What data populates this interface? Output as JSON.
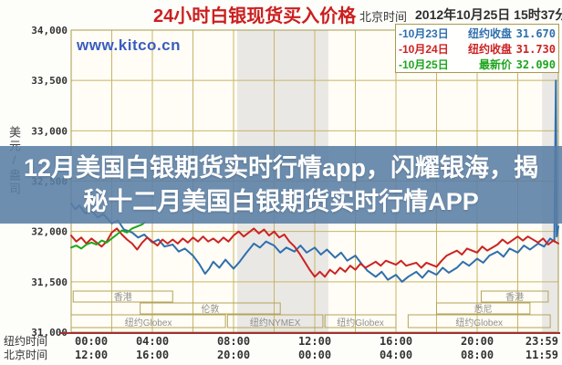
{
  "header": {
    "title": "24小时白银现货买入价格",
    "timezone_label": "北京时间",
    "datetime": "2012年10月25日 15时37分"
  },
  "watermark": "www.kitco.cn",
  "legend": [
    {
      "marker": "-",
      "date": "10月23日",
      "label": "纽约收盘",
      "value": "31.670",
      "color": "#2f6fad"
    },
    {
      "marker": "-",
      "date": "10月24日",
      "label": "纽约收盘",
      "value": "31.730",
      "color": "#cc2222"
    },
    {
      "marker": "-",
      "date": "10月25日",
      "label": "最新价",
      "value": "32.090",
      "color": "#1ea51e"
    }
  ],
  "overlay_banner": {
    "line1": "12月美国白银期货实时行情app，闪耀银海，揭",
    "line2": "秘十二月美国白银期货实时行情APP",
    "bg_color": "rgba(90,126,165,0.88)"
  },
  "y_axis": {
    "unit": "美元/盎司",
    "labels": [
      "34,000",
      "33,500",
      "33,000",
      "32,500",
      "32,000",
      "31,500",
      "31,000"
    ]
  },
  "x_axis": {
    "tick_hours": [
      0,
      4,
      8,
      12,
      16,
      20,
      23.98
    ],
    "rows": [
      {
        "label": "纽约时间",
        "ticks": [
          "00:00",
          "04:00",
          "08:00",
          "12:00",
          "16:00",
          "20:00",
          "23:59"
        ]
      },
      {
        "label": "北京时间",
        "ticks": [
          "12:00",
          "16:00",
          "20:00",
          "00:00",
          "04:00",
          "08:00",
          "11:59"
        ]
      }
    ]
  },
  "sessions": [
    {
      "row": 0,
      "label": "香港",
      "start_h": 0.1,
      "end_h": 5.0
    },
    {
      "row": 0,
      "label": "香港",
      "start_h": 20.2,
      "end_h": 23.5
    },
    {
      "row": 1,
      "label": "伦敦",
      "start_h": 3.4,
      "end_h": 10.3
    },
    {
      "row": 1,
      "label": "悉尼",
      "start_h": 18.0,
      "end_h": 22.6
    },
    {
      "row": 2,
      "label": "纽约Globex",
      "start_h": 0.0,
      "end_h": 7.6
    },
    {
      "row": 2,
      "label": "纽约NYMEX",
      "start_h": 7.7,
      "end_h": 12.4
    },
    {
      "row": 2,
      "label": "纽约Globex",
      "start_h": 12.5,
      "end_h": 16.0
    },
    {
      "row": 2,
      "label": "纽约Globex",
      "start_h": 16.6,
      "end_h": 23.6
    }
  ],
  "chart_data": {
    "type": "line",
    "title": "24小时白银现货买入价格",
    "ylabel": "美元/盎司",
    "ylim": [
      31.0,
      34.0
    ],
    "x_unit": "纽约时间 (hours)",
    "xlim": [
      0,
      24
    ],
    "grid": true,
    "legend_position": "top-right",
    "shaded_bands_hours": [
      [
        8.18,
        12.67
      ],
      [
        23.2,
        24
      ]
    ],
    "series": [
      {
        "name": "10月23日",
        "close_label": "纽约收盘",
        "close": 31.67,
        "color": "#2f6fad",
        "points": [
          [
            0,
            32.28
          ],
          [
            0.2,
            32.22
          ],
          [
            0.4,
            32.26
          ],
          [
            0.7,
            32.18
          ],
          [
            1,
            32.21
          ],
          [
            1.3,
            32.14
          ],
          [
            1.6,
            32.17
          ],
          [
            2,
            32.08
          ],
          [
            2.3,
            32.11
          ],
          [
            2.6,
            32.02
          ],
          [
            3,
            31.99
          ],
          [
            3.3,
            31.94
          ],
          [
            3.6,
            31.97
          ],
          [
            4,
            31.89
          ],
          [
            4.3,
            31.92
          ],
          [
            4.6,
            31.85
          ],
          [
            5,
            31.87
          ],
          [
            5.3,
            31.8
          ],
          [
            5.6,
            31.83
          ],
          [
            6,
            31.76
          ],
          [
            6.3,
            31.68
          ],
          [
            6.6,
            31.58
          ],
          [
            6.8,
            31.63
          ],
          [
            7,
            31.7
          ],
          [
            7.3,
            31.64
          ],
          [
            7.6,
            31.72
          ],
          [
            8,
            31.63
          ],
          [
            8.3,
            31.7
          ],
          [
            8.6,
            31.78
          ],
          [
            9,
            31.88
          ],
          [
            9.3,
            31.84
          ],
          [
            9.6,
            31.9
          ],
          [
            10,
            31.86
          ],
          [
            10.3,
            31.79
          ],
          [
            10.6,
            31.84
          ],
          [
            11,
            31.8
          ],
          [
            11.3,
            31.86
          ],
          [
            11.6,
            31.79
          ],
          [
            12,
            31.84
          ],
          [
            12.3,
            31.77
          ],
          [
            12.6,
            31.82
          ],
          [
            13,
            31.74
          ],
          [
            13.3,
            31.79
          ],
          [
            13.6,
            31.71
          ],
          [
            14,
            31.76
          ],
          [
            14.3,
            31.68
          ],
          [
            14.6,
            31.61
          ],
          [
            15,
            31.55
          ],
          [
            15.3,
            31.6
          ],
          [
            15.6,
            31.52
          ],
          [
            16,
            31.57
          ],
          [
            16.3,
            31.5
          ],
          [
            16.6,
            31.55
          ],
          [
            17,
            31.6
          ],
          [
            17.3,
            31.54
          ],
          [
            17.6,
            31.61
          ],
          [
            18,
            31.57
          ],
          [
            18.3,
            31.64
          ],
          [
            18.6,
            31.59
          ],
          [
            19,
            31.64
          ],
          [
            19.3,
            31.7
          ],
          [
            19.6,
            31.66
          ],
          [
            20,
            31.73
          ],
          [
            20.3,
            31.69
          ],
          [
            20.6,
            31.76
          ],
          [
            21,
            31.8
          ],
          [
            21.3,
            31.75
          ],
          [
            21.6,
            31.83
          ],
          [
            22,
            31.79
          ],
          [
            22.3,
            31.86
          ],
          [
            22.6,
            31.82
          ],
          [
            23,
            31.88
          ],
          [
            23.3,
            31.85
          ],
          [
            23.6,
            31.93
          ],
          [
            23.8,
            31.9
          ],
          [
            23.88,
            33.5
          ],
          [
            23.92,
            31.95
          ],
          [
            24,
            32.05
          ]
        ]
      },
      {
        "name": "10月24日",
        "close_label": "纽约收盘",
        "close": 31.73,
        "color": "#cc2222",
        "points": [
          [
            0,
            31.96
          ],
          [
            0.25,
            31.9
          ],
          [
            0.5,
            31.94
          ],
          [
            0.75,
            31.88
          ],
          [
            1,
            31.93
          ],
          [
            1.25,
            31.89
          ],
          [
            1.5,
            31.85
          ],
          [
            1.75,
            31.9
          ],
          [
            2,
            31.99
          ],
          [
            2.25,
            32.03
          ],
          [
            2.5,
            31.97
          ],
          [
            2.75,
            31.92
          ],
          [
            3,
            31.88
          ],
          [
            3.25,
            31.82
          ],
          [
            3.5,
            31.89
          ],
          [
            3.75,
            31.94
          ],
          [
            4,
            31.9
          ],
          [
            4.25,
            31.86
          ],
          [
            4.5,
            31.92
          ],
          [
            4.75,
            31.88
          ],
          [
            5,
            31.92
          ],
          [
            5.25,
            31.88
          ],
          [
            5.5,
            31.93
          ],
          [
            5.75,
            31.89
          ],
          [
            6,
            31.94
          ],
          [
            6.25,
            31.9
          ],
          [
            6.5,
            31.95
          ],
          [
            6.75,
            31.9
          ],
          [
            7,
            31.93
          ],
          [
            7.25,
            31.89
          ],
          [
            7.5,
            31.94
          ],
          [
            7.75,
            31.9
          ],
          [
            8,
            31.96
          ],
          [
            8.25,
            32.0
          ],
          [
            8.5,
            31.95
          ],
          [
            8.75,
            31.99
          ],
          [
            9,
            32.03
          ],
          [
            9.25,
            31.98
          ],
          [
            9.5,
            32.02
          ],
          [
            9.75,
            31.96
          ],
          [
            10,
            32.0
          ],
          [
            10.25,
            31.94
          ],
          [
            10.5,
            31.97
          ],
          [
            10.75,
            31.9
          ],
          [
            11,
            31.85
          ],
          [
            11.25,
            31.78
          ],
          [
            11.5,
            31.7
          ],
          [
            11.75,
            31.62
          ],
          [
            12,
            31.55
          ],
          [
            12.25,
            31.6
          ],
          [
            12.5,
            31.55
          ],
          [
            12.75,
            31.62
          ],
          [
            13,
            31.58
          ],
          [
            13.25,
            31.64
          ],
          [
            13.5,
            31.6
          ],
          [
            13.75,
            31.66
          ],
          [
            14,
            31.62
          ],
          [
            14.25,
            31.68
          ],
          [
            14.5,
            31.64
          ],
          [
            15,
            31.7
          ],
          [
            15.25,
            31.66
          ],
          [
            15.5,
            31.71
          ],
          [
            16,
            31.67
          ],
          [
            16.25,
            31.71
          ],
          [
            16.5,
            31.66
          ],
          [
            17,
            31.69
          ],
          [
            17.25,
            31.64
          ],
          [
            17.5,
            31.69
          ],
          [
            18,
            31.65
          ],
          [
            18.25,
            31.71
          ],
          [
            18.5,
            31.76
          ],
          [
            19,
            31.81
          ],
          [
            19.25,
            31.77
          ],
          [
            19.5,
            31.83
          ],
          [
            20,
            31.79
          ],
          [
            20.25,
            31.85
          ],
          [
            20.5,
            31.81
          ],
          [
            21,
            31.87
          ],
          [
            21.25,
            31.92
          ],
          [
            21.5,
            31.88
          ],
          [
            22,
            31.95
          ],
          [
            22.25,
            31.91
          ],
          [
            22.5,
            31.95
          ],
          [
            23,
            31.89
          ],
          [
            23.25,
            31.93
          ],
          [
            23.5,
            31.87
          ],
          [
            23.75,
            31.91
          ],
          [
            24,
            31.88
          ]
        ]
      },
      {
        "name": "10月25日",
        "close_label": "最新价",
        "close": 32.09,
        "color": "#1ea51e",
        "points": [
          [
            0,
            31.84
          ],
          [
            0.25,
            31.86
          ],
          [
            0.5,
            31.83
          ],
          [
            0.75,
            31.87
          ],
          [
            1,
            31.89
          ],
          [
            1.25,
            31.87
          ],
          [
            1.5,
            31.91
          ],
          [
            1.75,
            31.89
          ],
          [
            2,
            31.93
          ],
          [
            2.25,
            31.97
          ],
          [
            2.5,
            32.01
          ],
          [
            2.75,
            31.99
          ],
          [
            3,
            32.03
          ],
          [
            3.25,
            32.05
          ],
          [
            3.5,
            32.07
          ],
          [
            3.62,
            32.09
          ]
        ]
      }
    ]
  }
}
